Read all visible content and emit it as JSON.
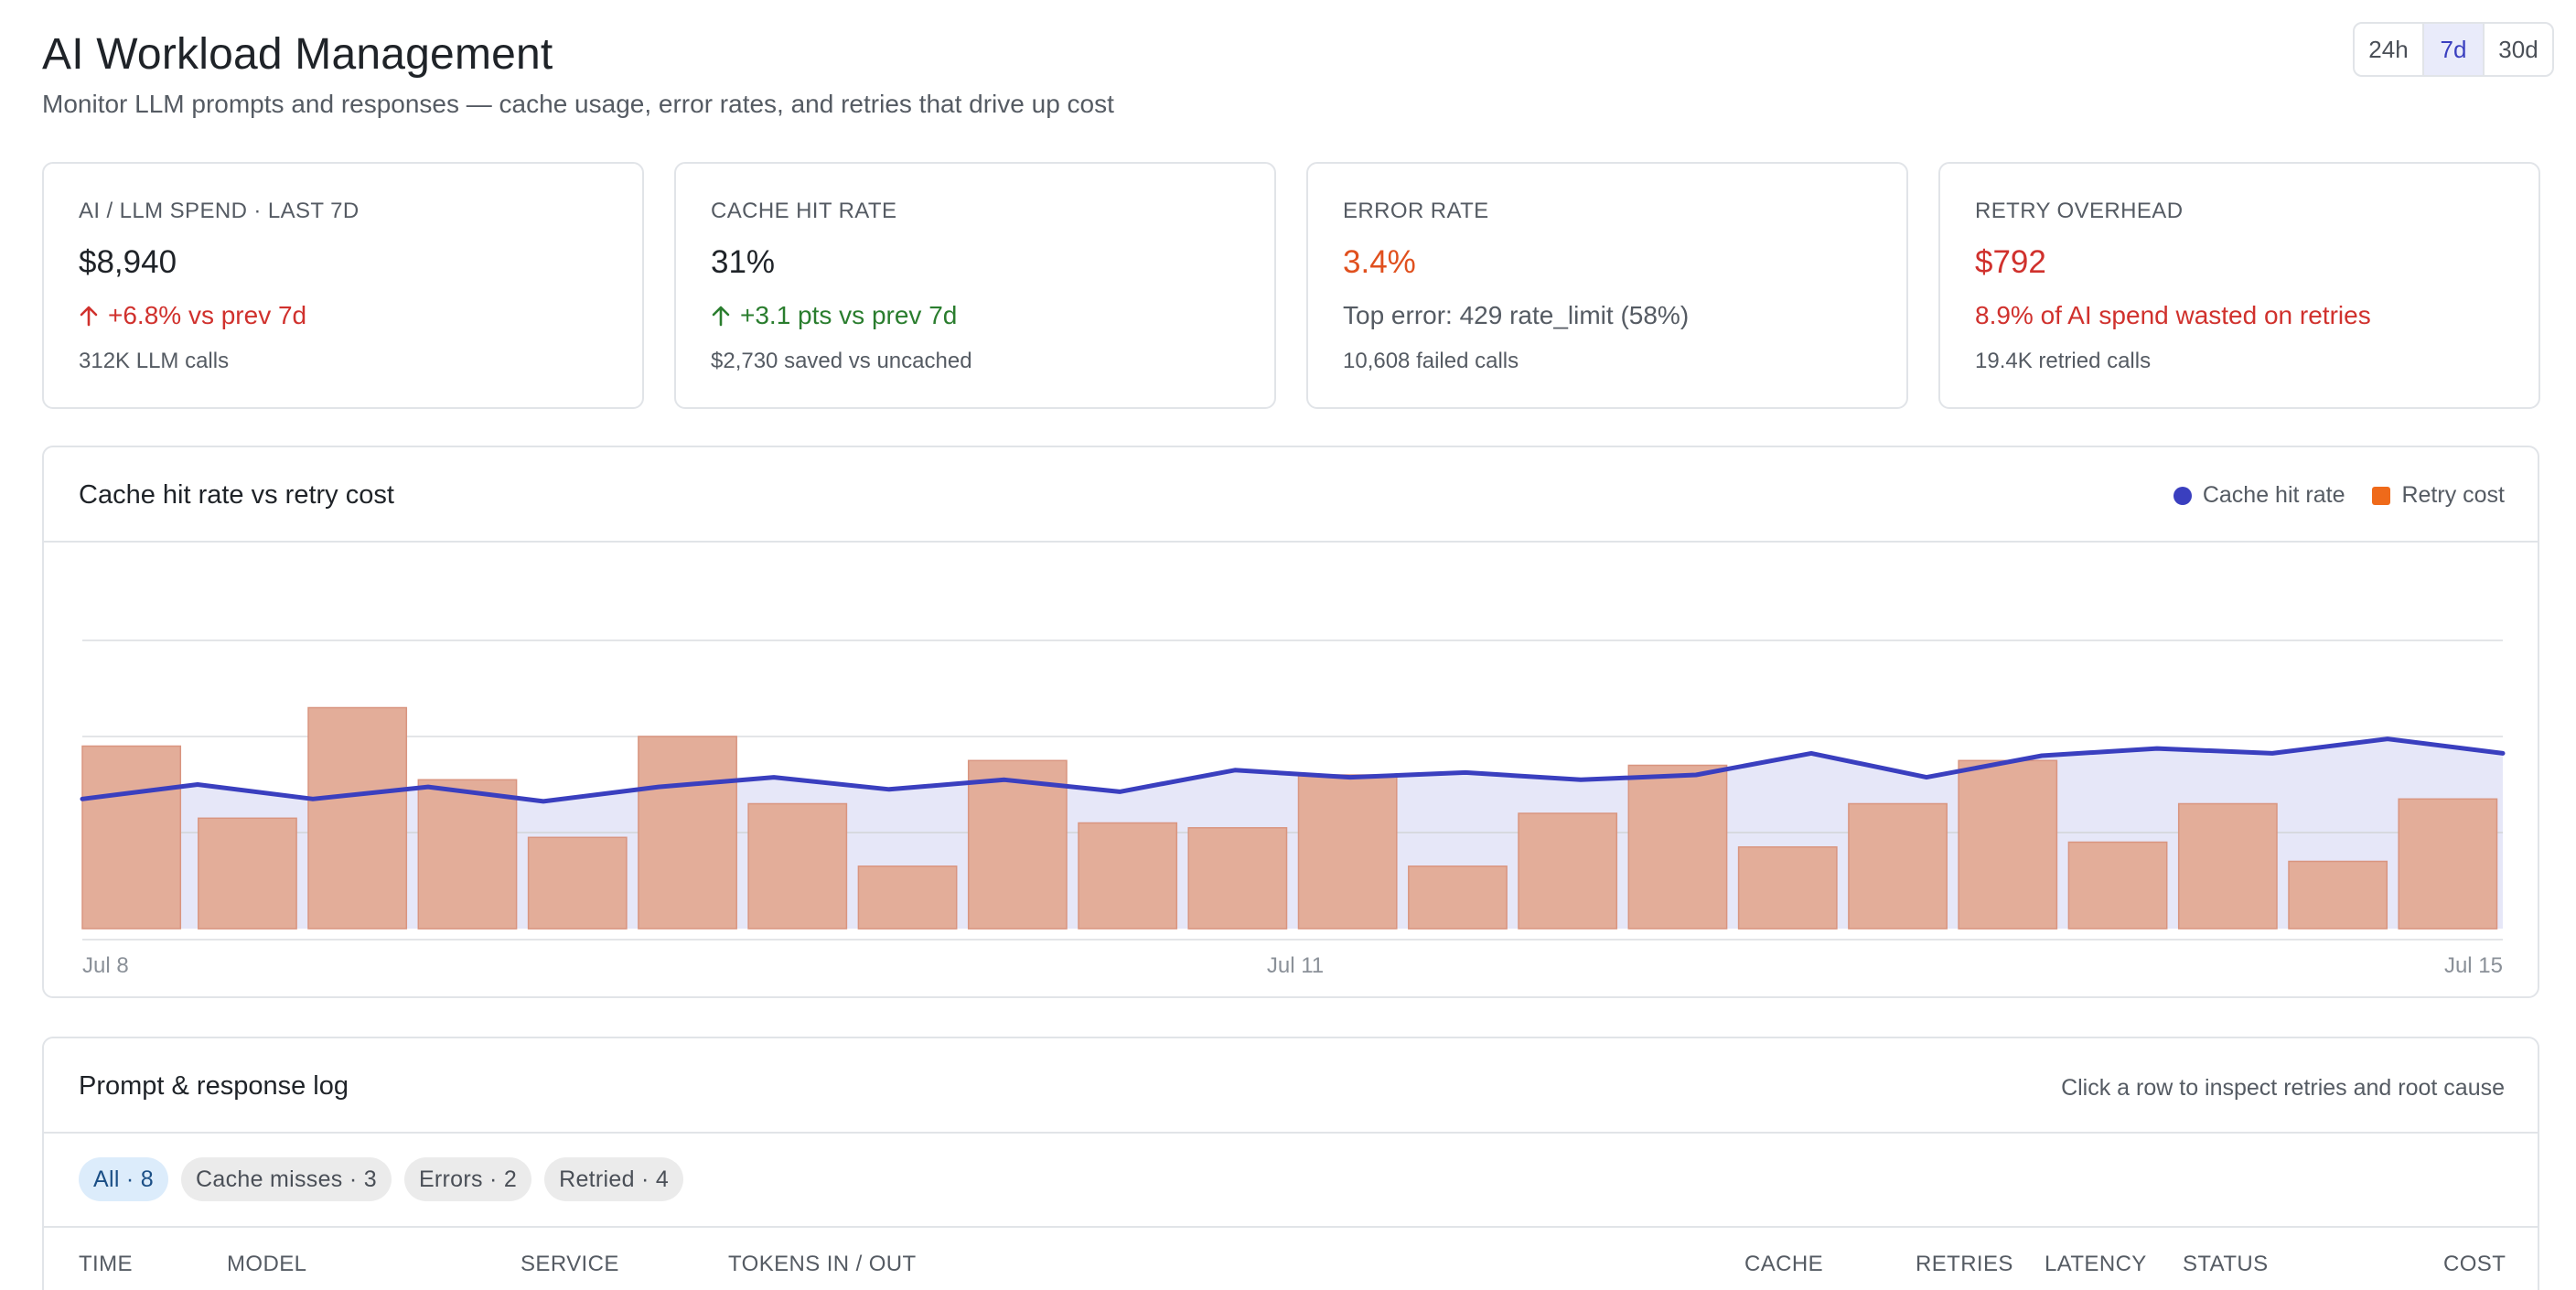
{
  "header": {
    "title": "AI Workload Management",
    "subtitle": "Monitor LLM prompts and responses — cache usage, error rates, and retries that drive up cost",
    "ranges": [
      "24h",
      "7d",
      "30d"
    ],
    "active_range": "7d"
  },
  "kpis": [
    {
      "label": "AI / LLM SPEND · LAST 7D",
      "value": "$8,940",
      "trend": "+6.8% vs prev 7d",
      "trend_icon": "arrow-up-icon",
      "sub": "312K LLM calls"
    },
    {
      "label": "CACHE HIT RATE",
      "value": "31%",
      "trend": "+3.1 pts vs prev 7d",
      "trend_icon": "arrow-up-icon",
      "sub": "$2,730 saved vs uncached"
    },
    {
      "label": "ERROR RATE",
      "value": "3.4%",
      "trend": "Top error: 429 rate_limit (58%)",
      "sub": "10,608 failed calls"
    },
    {
      "label": "RETRY OVERHEAD",
      "value": "$792",
      "trend": "8.9% of AI spend wasted on retries",
      "sub": "19.4K retried calls"
    }
  ],
  "chart": {
    "title": "Cache hit rate vs retry cost",
    "legend": {
      "line": "Cache hit rate",
      "bars": "Retry cost"
    },
    "colors": {
      "line": "#3a3fbf",
      "area": "#e6e7f8",
      "bars": "#e3ad99",
      "legend_bars": "#ef6a1a"
    },
    "x_tick_labels": [
      "Jul 8",
      "Jul 11",
      "Jul 15"
    ]
  },
  "chart_data": {
    "type": "bar",
    "title": "Cache hit rate vs retry cost",
    "xlabel": "",
    "ylabel": "",
    "x_range": [
      "Jul 8",
      "Jul 15"
    ],
    "n_points": 22,
    "grid": true,
    "legend_position": "top-right",
    "series": [
      {
        "name": "Cache hit rate",
        "kind": "line-area",
        "values": [
          27,
          30,
          27,
          29.5,
          26.5,
          29.5,
          31.5,
          29,
          31,
          28.5,
          33,
          31.5,
          32.5,
          31,
          32,
          36.5,
          31.5,
          36,
          37.5,
          36.5,
          39.5,
          36.5
        ]
      },
      {
        "name": "Retry cost",
        "kind": "bar",
        "values": [
          38,
          23,
          46,
          31,
          19,
          40,
          26,
          13,
          35,
          22,
          21,
          32,
          13,
          24,
          34,
          17,
          26,
          35,
          18,
          26,
          14,
          27
        ]
      }
    ],
    "ylim": [
      0,
      80
    ]
  },
  "log": {
    "title": "Prompt & response log",
    "hint": "Click a row to inspect retries and root cause",
    "filters": [
      {
        "label": "All · 8",
        "active": true
      },
      {
        "label": "Cache misses · 3",
        "active": false
      },
      {
        "label": "Errors · 2",
        "active": false
      },
      {
        "label": "Retried · 4",
        "active": false
      }
    ],
    "columns": [
      "TIME",
      "MODEL",
      "SERVICE",
      "TOKENS IN / OUT",
      "CACHE",
      "RETRIES",
      "LATENCY",
      "STATUS",
      "COST"
    ]
  }
}
